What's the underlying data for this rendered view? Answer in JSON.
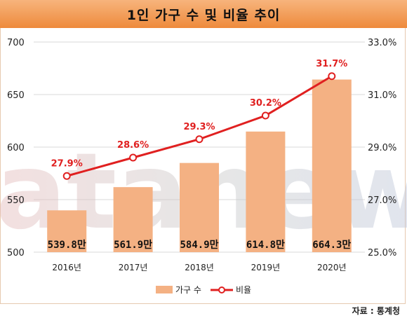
{
  "title": "1인 가구 수 및 비율 추이",
  "source": "자료 : 통계청",
  "chart_data": {
    "type": "bar",
    "categories": [
      "2016년",
      "2017년",
      "2018년",
      "2019년",
      "2020년"
    ],
    "series": [
      {
        "name": "가구 수",
        "type": "bar",
        "values": [
          539.8,
          561.9,
          584.9,
          614.8,
          664.3
        ],
        "labels": [
          "539.8만",
          "561.9만",
          "584.9만",
          "614.8만",
          "664.3만"
        ]
      },
      {
        "name": "비율",
        "type": "line",
        "values": [
          27.9,
          28.6,
          29.3,
          30.2,
          31.7
        ],
        "labels": [
          "27.9%",
          "28.6%",
          "29.3%",
          "30.2%",
          "31.7%"
        ]
      }
    ],
    "y_left": {
      "min": 500,
      "max": 700,
      "ticks": [
        "500",
        "550",
        "600",
        "650",
        "700"
      ]
    },
    "y_right": {
      "min": 25.0,
      "max": 33.0,
      "ticks": [
        "25.0%",
        "27.0%",
        "29.0%",
        "31.0%",
        "33.0%"
      ]
    },
    "grid": true,
    "legend_position": "bottom",
    "colors": {
      "bar": "#f4b183",
      "line": "#e02020",
      "grid": "#d9d9d9"
    }
  }
}
